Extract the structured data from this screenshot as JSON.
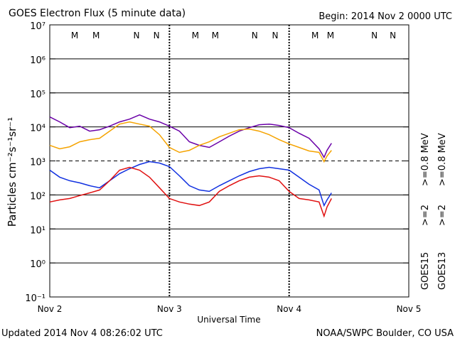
{
  "chart_data": {
    "type": "line",
    "title": "GOES Electron Flux (5 minute data)",
    "subtitle": "Begin: 2014 Nov 2 0000 UTC",
    "xlabel": "Universal Time",
    "ylabel": "Particles cm⁻²s⁻¹sr⁻¹",
    "footer_left": "Updated 2014 Nov  4 08:26:02 UTC",
    "footer_right": "NOAA/SWPC Boulder, CO USA",
    "yscale": "log",
    "grid": true,
    "dashed_grid_at": 1000,
    "xlim": [
      0,
      72
    ],
    "xticks": [
      {
        "value": 0,
        "label": "Nov 2"
      },
      {
        "value": 24,
        "label": "Nov 3"
      },
      {
        "value": 48,
        "label": "Nov 4"
      },
      {
        "value": 72,
        "label": "Nov 5"
      }
    ],
    "ylim": [
      0.1,
      10000000
    ],
    "yticks": [
      {
        "value": 0.1,
        "label": "10⁻¹"
      },
      {
        "value": 1,
        "label": "10⁰"
      },
      {
        "value": 10,
        "label": "10¹"
      },
      {
        "value": 100,
        "label": "10²"
      },
      {
        "value": 1000,
        "label": "10³"
      },
      {
        "value": 10000,
        "label": "10⁴"
      },
      {
        "value": 100000,
        "label": "10⁵"
      },
      {
        "value": 1000000,
        "label": "10⁶"
      },
      {
        "value": 10000000,
        "label": "10⁷"
      }
    ],
    "satellites": [
      "GOES15",
      "GOES13"
    ],
    "x": [
      0,
      2,
      4,
      6,
      8,
      10,
      12,
      14,
      16,
      18,
      20,
      22,
      24,
      26,
      28,
      30,
      32,
      34,
      36,
      38,
      40,
      42,
      44,
      46,
      48,
      50,
      52,
      54,
      55,
      55.6,
      56.5
    ],
    "series": [
      {
        "name": ">=0.8 MeV",
        "color": "#6a00a8",
        "values": [
          19600,
          14000,
          9500,
          10500,
          7500,
          8250,
          10500,
          14000,
          16900,
          22600,
          16900,
          14000,
          10500,
          7500,
          3650,
          2870,
          2490,
          3650,
          5360,
          7500,
          9500,
          11550,
          12100,
          11000,
          9500,
          6500,
          4640,
          2260,
          1270,
          2050,
          3310
        ]
      },
      {
        "name": ">=2",
        "color": "#1030e0",
        "values": [
          536,
          332,
          261,
          226,
          187,
          162,
          261,
          422,
          590,
          787,
          954,
          866,
          681,
          365,
          187,
          140,
          127,
          187,
          261,
          365,
          487,
          590,
          649,
          590,
          536,
          332,
          205,
          140,
          48.7,
          71.5,
          115
        ]
      },
      {
        "name": ">=0.8 MeV",
        "color": "#f5a300",
        "values": [
          2870,
          2260,
          2610,
          3650,
          4220,
          4640,
          7500,
          12100,
          14000,
          12100,
          10500,
          5900,
          2490,
          1780,
          2050,
          2870,
          3650,
          5110,
          6500,
          8250,
          8660,
          7500,
          5900,
          4220,
          3160,
          2490,
          1960,
          1780,
          950,
          1400,
          2050
        ]
      },
      {
        "name": ">=2",
        "color": "#e01010",
        "values": [
          62,
          71.5,
          78.7,
          95.5,
          115,
          140,
          261,
          536,
          649,
          536,
          332,
          162,
          78.7,
          62,
          53.7,
          48.7,
          62,
          127,
          187,
          261,
          332,
          365,
          332,
          261,
          127,
          78.7,
          71.5,
          62,
          23.7,
          44.3,
          78.7
        ]
      }
    ],
    "markers": [
      {
        "label": "M",
        "x": 5,
        "color": "#e01010"
      },
      {
        "label": "M",
        "x": 9.3,
        "color": "#1030e0"
      },
      {
        "label": "N",
        "x": 17.4,
        "color": "#e01010"
      },
      {
        "label": "N",
        "x": 21.4,
        "color": "#1030e0"
      },
      {
        "label": "M",
        "x": 29.2,
        "color": "#e01010"
      },
      {
        "label": "M",
        "x": 33.2,
        "color": "#1030e0"
      },
      {
        "label": "N",
        "x": 41.1,
        "color": "#e01010"
      },
      {
        "label": "N",
        "x": 45.2,
        "color": "#1030e0"
      },
      {
        "label": "M",
        "x": 53.2,
        "color": "#e01010"
      },
      {
        "label": "M",
        "x": 56.3,
        "color": "#1030e0"
      },
      {
        "label": "N",
        "x": 65.1,
        "color": "#e01010"
      },
      {
        "label": "N",
        "x": 68.8,
        "color": "#1030e0"
      }
    ]
  }
}
